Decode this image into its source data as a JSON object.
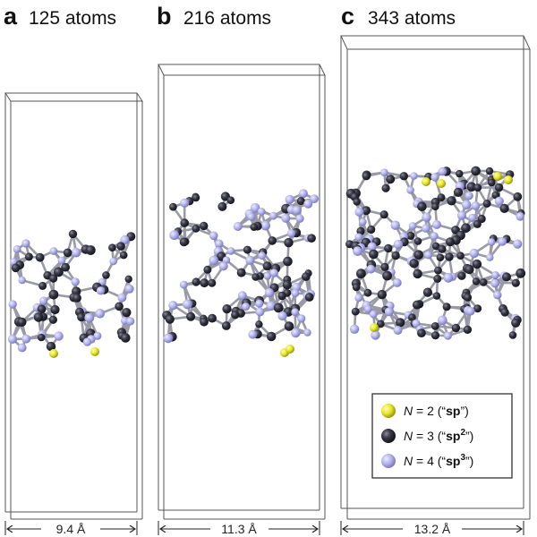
{
  "panels": [
    {
      "letter": "a",
      "atoms_label": "125 atoms",
      "atom_count": 125,
      "width_label": "9.4 Å",
      "width_angstrom": 9.4
    },
    {
      "letter": "b",
      "atoms_label": "216 atoms",
      "atom_count": 216,
      "width_label": "11.3 Å",
      "width_angstrom": 11.3
    },
    {
      "letter": "c",
      "atoms_label": "343 atoms",
      "atom_count": 343,
      "width_label": "13.2 Å",
      "width_angstrom": 13.2
    }
  ],
  "legend": [
    {
      "n_prefix": "N",
      "n_value": " = 2 (“",
      "hyb": "sp",
      "sup": "",
      "close": "”)",
      "color": "#e6e62a"
    },
    {
      "n_prefix": "N",
      "n_value": " = 3 (“",
      "hyb": "sp",
      "sup": "2",
      "close": "”)",
      "color": "#3a3a48"
    },
    {
      "n_prefix": "N",
      "n_value": " = 4 (“",
      "hyb": "sp",
      "sup": "3",
      "close": "”)",
      "color": "#b4b4ec"
    }
  ],
  "colors": {
    "sp": "#e6e62a",
    "sp2": "#3a3a48",
    "sp3": "#b4b4ec",
    "bond": "#9a9aa6",
    "box": "#555555"
  }
}
